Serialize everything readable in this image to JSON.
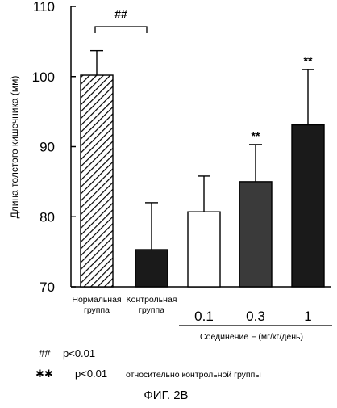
{
  "chart_data": {
    "type": "bar",
    "ylabel": "Длина толстого кишечника (мм)",
    "ylim": [
      70,
      110
    ],
    "yticks": [
      70,
      80,
      90,
      100,
      110
    ],
    "grid": false,
    "categories": [
      {
        "id": "normal",
        "label_lines": [
          "Нормальная",
          "группа"
        ],
        "value": 100.2,
        "error": 3.5,
        "fill": "hatch",
        "annotation": ""
      },
      {
        "id": "control",
        "label_lines": [
          "Контрольная",
          "группа"
        ],
        "value": 75.3,
        "error": 6.7,
        "fill": "black",
        "annotation": ""
      },
      {
        "id": "f01",
        "dose_label": "0.1",
        "value": 80.7,
        "error": 5.1,
        "fill": "white",
        "annotation": ""
      },
      {
        "id": "f03",
        "dose_label": "0.3",
        "value": 85.0,
        "error": 5.3,
        "fill": "dark-gray",
        "annotation": "**"
      },
      {
        "id": "f1",
        "dose_label": "1",
        "value": 93.1,
        "error": 7.9,
        "fill": "black",
        "annotation": "**"
      }
    ],
    "bracket": {
      "from": "normal",
      "to": "control",
      "label": "##"
    },
    "group_label": "Соединение F (мг/кг/день)"
  },
  "footnotes": [
    {
      "symbol": "##",
      "text": "p<0.01"
    },
    {
      "symbol": "✱✱",
      "text": "p<0.01",
      "suffix": "относительно контрольной группы"
    }
  ],
  "caption": "ФИГ. 2В",
  "colors": {
    "black": "#1a1a1a",
    "dark_gray": "#3a3a3a",
    "white": "#ffffff",
    "ink": "#000000"
  }
}
